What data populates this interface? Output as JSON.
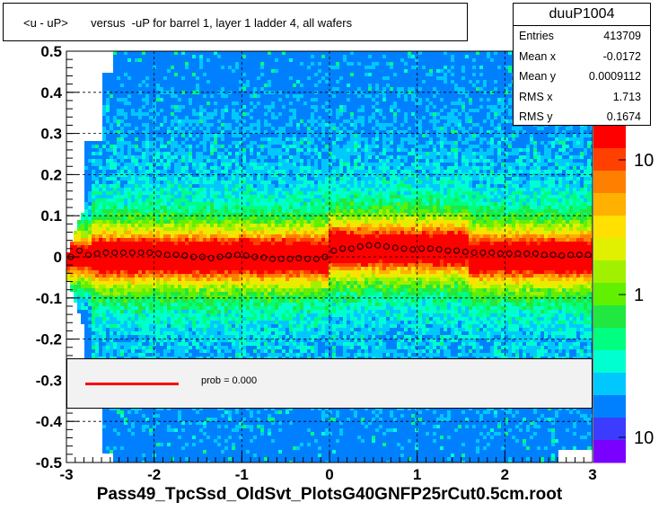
{
  "title": "<u - uP>       versus  -uP for barrel 1, layer 1 ladder 4, all wafers",
  "footer": "Pass49_TpcSsd_OldSvt_PlotsG40GNFP25rCut0.5cm.root",
  "stats": {
    "name": "duuP1004",
    "rows": [
      {
        "label": "Entries",
        "value": "413709"
      },
      {
        "label": "Mean x",
        "value": "-0.0172"
      },
      {
        "label": "Mean y",
        "value": "0.0009112"
      },
      {
        "label": "RMS x",
        "value": "1.713"
      },
      {
        "label": "RMS y",
        "value": "0.1674"
      }
    ]
  },
  "legend": {
    "text": "prob = 0.000",
    "line_color": "#ff0000"
  },
  "chart_data": {
    "type": "heatmap",
    "xlim": [
      -3,
      3
    ],
    "ylim": [
      -0.5,
      0.5
    ],
    "x_ticks": [
      "-3",
      "-2",
      "-1",
      "0",
      "1",
      "2",
      "3"
    ],
    "y_ticks": [
      "-0.5",
      "-0.4",
      "-0.3",
      "-0.2",
      "-0.1",
      "0",
      "0.1",
      "0.2",
      "0.3",
      "0.4",
      "0.5"
    ],
    "z_scale": "log",
    "z_ticks": [
      "10",
      "1",
      "10"
    ],
    "grid": true,
    "profile_points": [
      {
        "x": -2.95,
        "y": 0.0
      },
      {
        "x": -2.85,
        "y": 0.015
      },
      {
        "x": -2.75,
        "y": 0.005
      },
      {
        "x": -2.65,
        "y": 0.008
      },
      {
        "x": -2.55,
        "y": 0.01
      },
      {
        "x": -2.45,
        "y": 0.01
      },
      {
        "x": -2.35,
        "y": 0.01
      },
      {
        "x": -2.25,
        "y": 0.01
      },
      {
        "x": -2.15,
        "y": 0.01
      },
      {
        "x": -2.05,
        "y": 0.01
      },
      {
        "x": -1.95,
        "y": 0.008
      },
      {
        "x": -1.85,
        "y": 0.005
      },
      {
        "x": -1.75,
        "y": 0.005
      },
      {
        "x": -1.65,
        "y": 0.003
      },
      {
        "x": -1.55,
        "y": 0.0
      },
      {
        "x": -1.45,
        "y": 0.0
      },
      {
        "x": -1.35,
        "y": -0.003
      },
      {
        "x": -1.25,
        "y": 0.0
      },
      {
        "x": -1.15,
        "y": 0.003
      },
      {
        "x": -1.05,
        "y": 0.005
      },
      {
        "x": -0.95,
        "y": 0.003
      },
      {
        "x": -0.85,
        "y": 0.0
      },
      {
        "x": -0.75,
        "y": -0.002
      },
      {
        "x": -0.65,
        "y": -0.005
      },
      {
        "x": -0.55,
        "y": -0.005
      },
      {
        "x": -0.45,
        "y": -0.005
      },
      {
        "x": -0.35,
        "y": -0.003
      },
      {
        "x": -0.25,
        "y": -0.005
      },
      {
        "x": -0.15,
        "y": -0.005
      },
      {
        "x": -0.05,
        "y": 0.0
      },
      {
        "x": 0.05,
        "y": 0.015
      },
      {
        "x": 0.15,
        "y": 0.02
      },
      {
        "x": 0.25,
        "y": 0.02
      },
      {
        "x": 0.35,
        "y": 0.025
      },
      {
        "x": 0.45,
        "y": 0.028
      },
      {
        "x": 0.55,
        "y": 0.028
      },
      {
        "x": 0.65,
        "y": 0.025
      },
      {
        "x": 0.75,
        "y": 0.022
      },
      {
        "x": 0.85,
        "y": 0.02
      },
      {
        "x": 0.95,
        "y": 0.018
      },
      {
        "x": 1.05,
        "y": 0.02
      },
      {
        "x": 1.15,
        "y": 0.02
      },
      {
        "x": 1.25,
        "y": 0.018
      },
      {
        "x": 1.35,
        "y": 0.015
      },
      {
        "x": 1.45,
        "y": 0.015
      },
      {
        "x": 1.55,
        "y": 0.012
      },
      {
        "x": 1.65,
        "y": 0.01
      },
      {
        "x": 1.75,
        "y": 0.01
      },
      {
        "x": 1.85,
        "y": 0.01
      },
      {
        "x": 1.95,
        "y": 0.008
      },
      {
        "x": 2.05,
        "y": 0.008
      },
      {
        "x": 2.15,
        "y": 0.008
      },
      {
        "x": 2.25,
        "y": 0.008
      },
      {
        "x": 2.35,
        "y": 0.008
      },
      {
        "x": 2.45,
        "y": 0.005
      },
      {
        "x": 2.55,
        "y": 0.005
      },
      {
        "x": 2.65,
        "y": 0.003
      },
      {
        "x": 2.75,
        "y": 0.005
      },
      {
        "x": 2.85,
        "y": 0.005
      },
      {
        "x": 2.95,
        "y": 0.005
      }
    ]
  }
}
